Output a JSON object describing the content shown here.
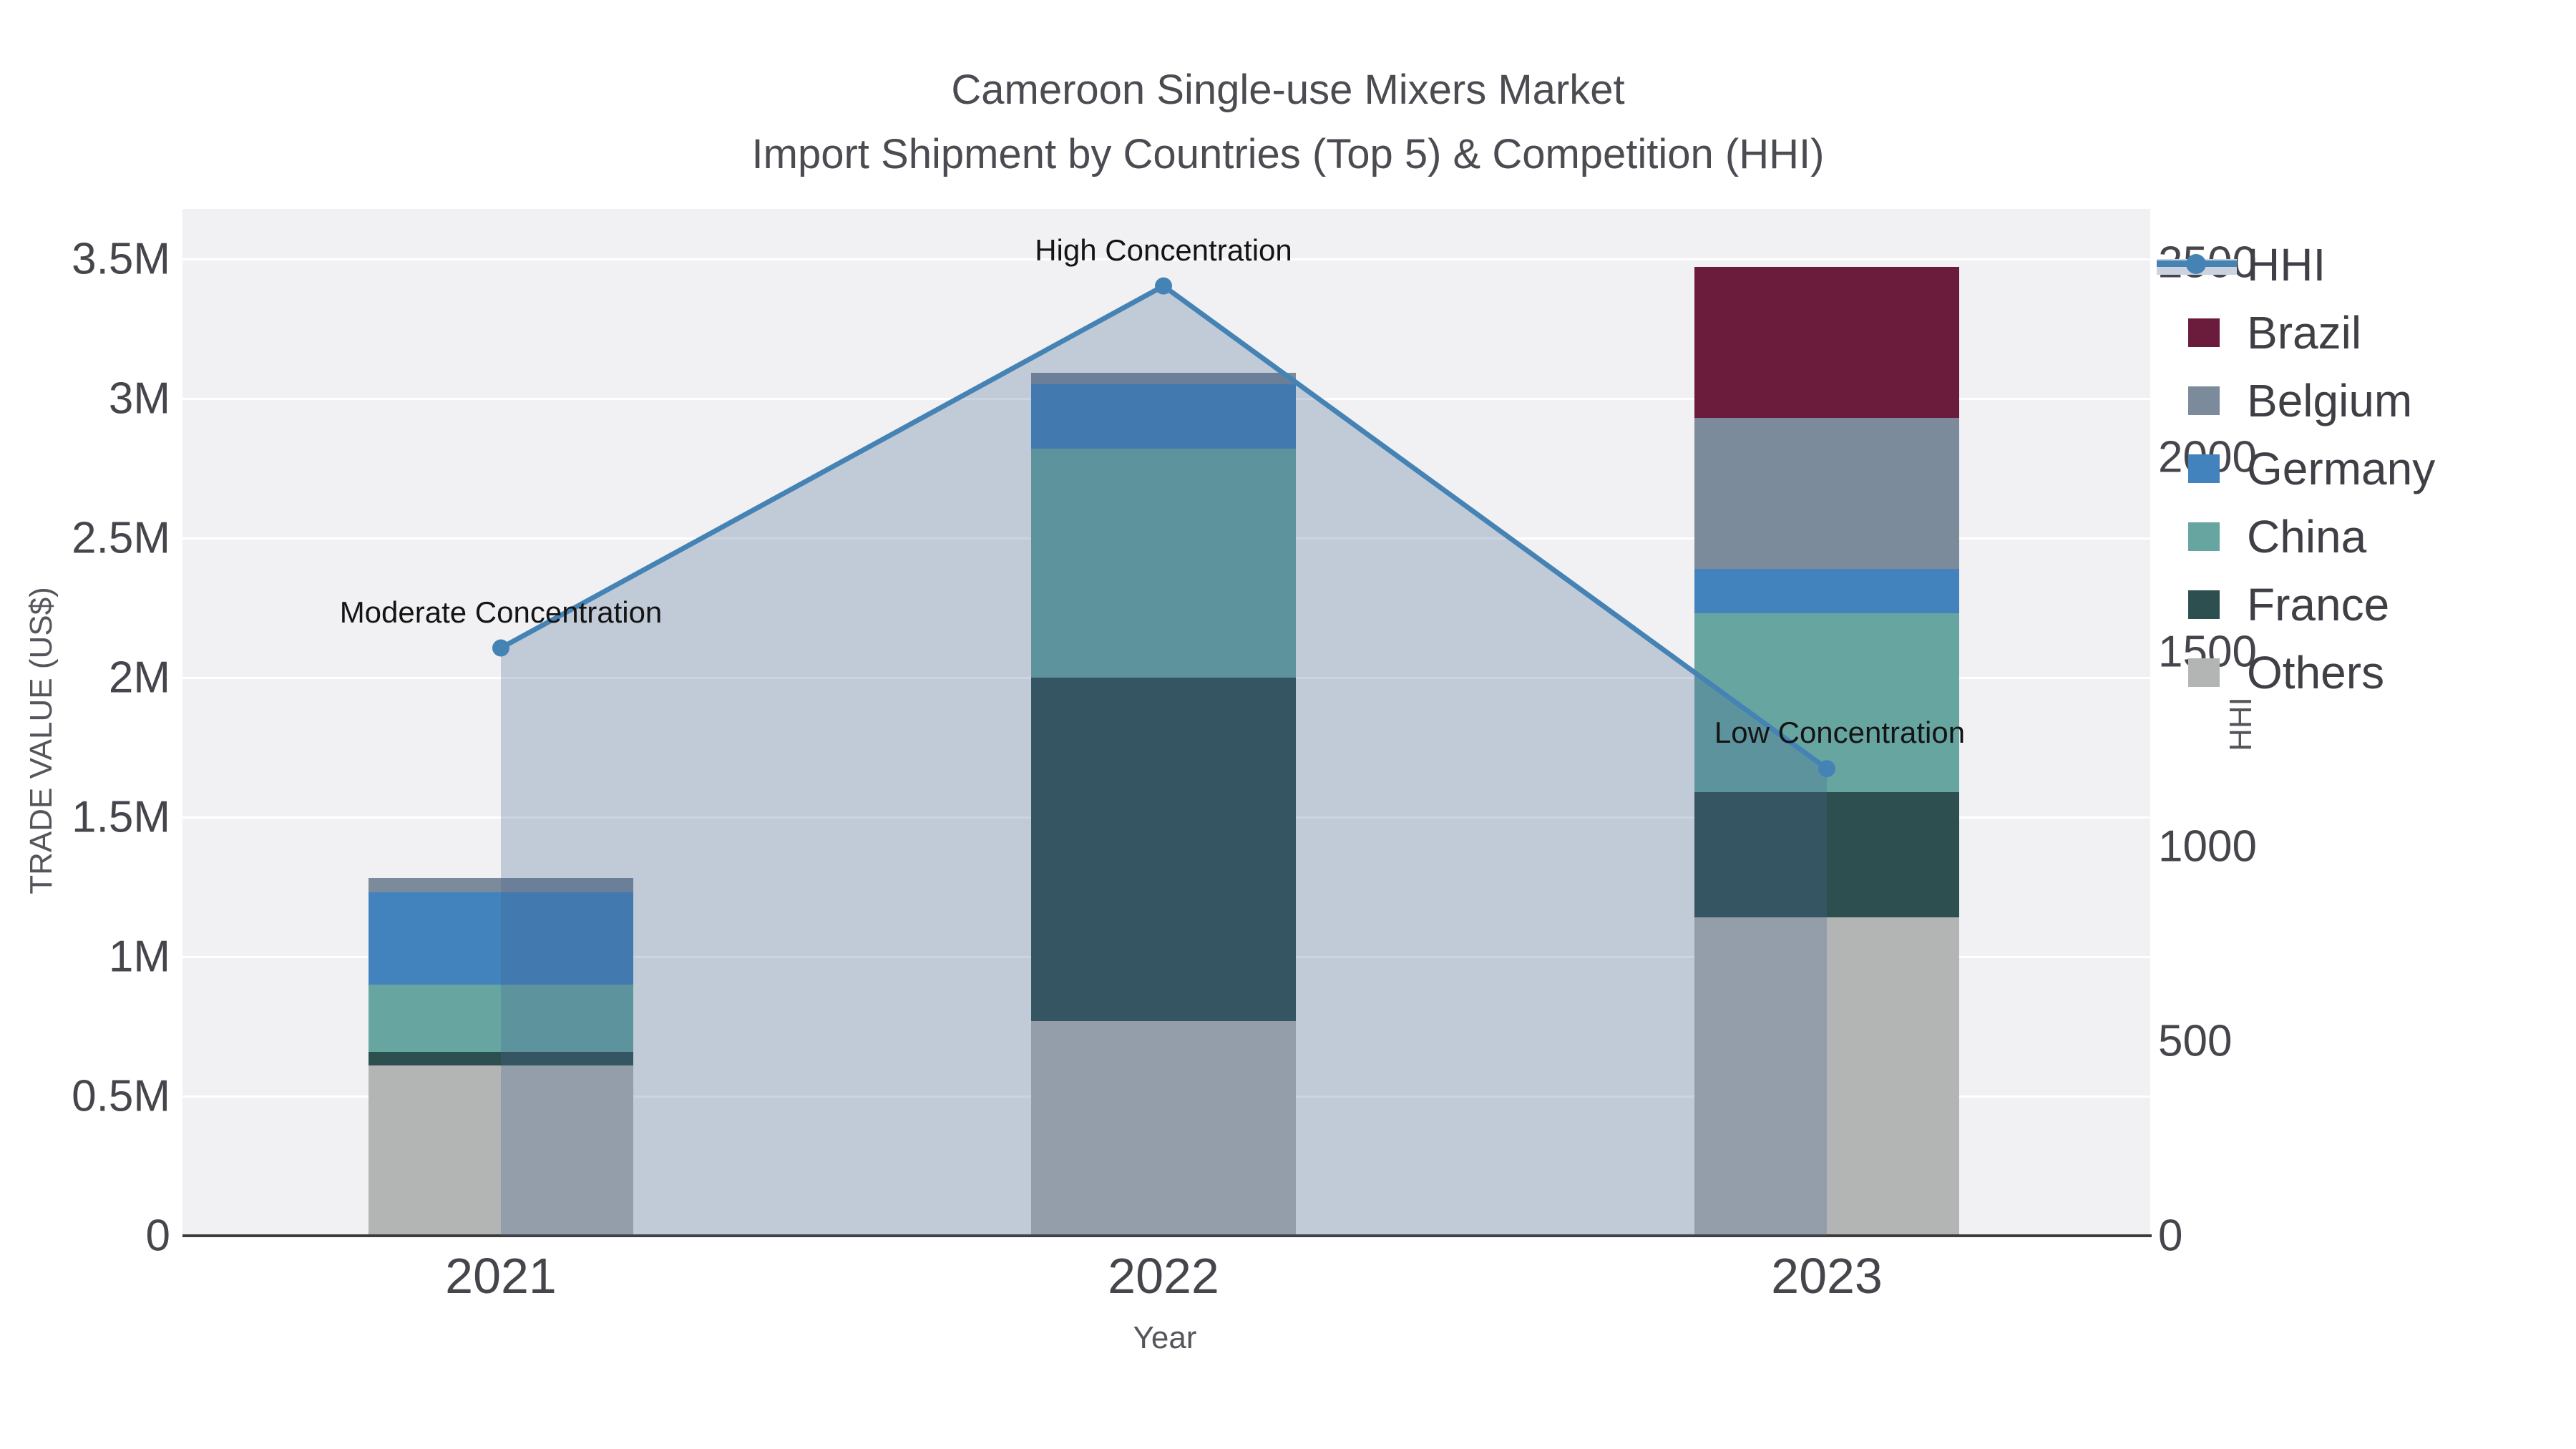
{
  "title": {
    "line1": "Cameroon Single-use Mixers Market",
    "line2": "Import Shipment by Countries (Top 5) & Competition (HHI)"
  },
  "chart_data": {
    "type": "bar+line",
    "unit": "M US$",
    "categories": [
      "2021",
      "2022",
      "2023"
    ],
    "bar_series": [
      {
        "name": "Others",
        "color": "#b3b4b4",
        "values": [
          0.61,
          0.77,
          1.14
        ]
      },
      {
        "name": "France",
        "color": "#2e4f4f",
        "values": [
          0.05,
          1.23,
          0.45
        ]
      },
      {
        "name": "China",
        "color": "#67a5a1",
        "values": [
          0.24,
          0.82,
          0.64
        ]
      },
      {
        "name": "Germany",
        "color": "#4283bd",
        "values": [
          0.33,
          0.23,
          0.16
        ]
      },
      {
        "name": "Belgium",
        "color": "#7b8b9c",
        "values": [
          0.05,
          0.04,
          0.54
        ]
      },
      {
        "name": "Brazil",
        "color": "#6b1b3c",
        "values": [
          0.0,
          0.0,
          0.54
        ]
      }
    ],
    "line_series": {
      "name": "HHI",
      "color": "#4583b5",
      "values": [
        1510,
        2440,
        1200
      ]
    },
    "area_fill": "rgba(70,100,145,0.28)",
    "annotations": [
      {
        "text": "Moderate Concentration",
        "category": "2021"
      },
      {
        "text": "High Concentration",
        "category": "2022"
      },
      {
        "text": "Low Concentration",
        "category": "2023"
      }
    ],
    "y_left": {
      "title": "TRADE VALUE (US$)",
      "ticks": [
        "0",
        "0.5M",
        "1M",
        "1.5M",
        "2M",
        "2.5M",
        "3M",
        "3.5M"
      ],
      "tick_values_m": [
        0,
        0.5,
        1,
        1.5,
        2,
        2.5,
        3,
        3.5
      ]
    },
    "y_right": {
      "title": "HHI",
      "ticks": [
        "0",
        "500",
        "1000",
        "1500",
        "2000",
        "2500"
      ],
      "tick_values": [
        0,
        500,
        1000,
        1500,
        2000,
        2500
      ]
    },
    "x_axis": {
      "title": "Year"
    },
    "legend_order": [
      "HHI",
      "Brazil",
      "Belgium",
      "Germany",
      "China",
      "France",
      "Others"
    ],
    "grid_on": true,
    "legend_position": "right"
  }
}
